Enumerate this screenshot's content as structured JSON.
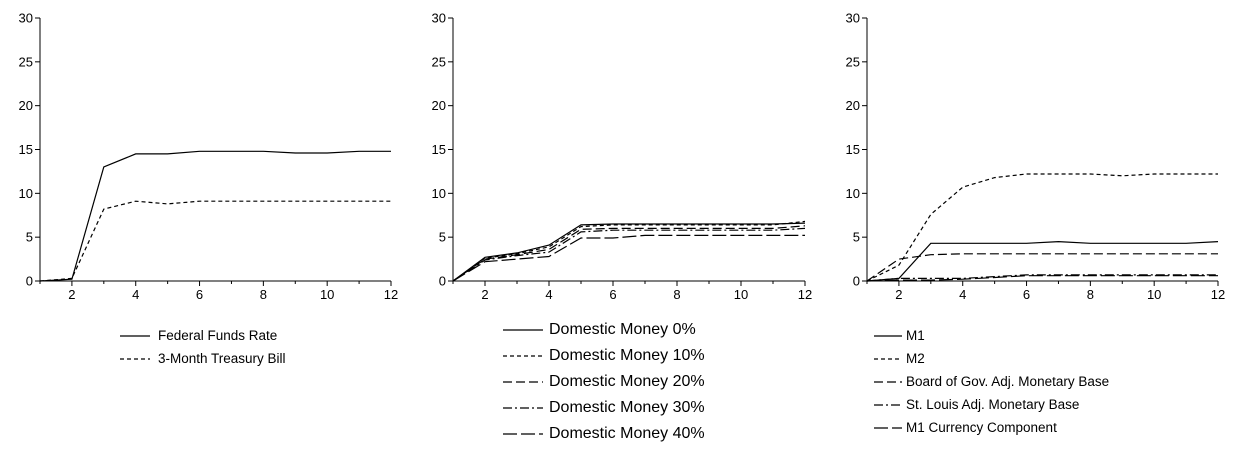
{
  "chart_data": [
    {
      "type": "line",
      "x": [
        1,
        2,
        3,
        4,
        5,
        6,
        7,
        8,
        9,
        10,
        11,
        12
      ],
      "xticks": [
        2,
        4,
        6,
        8,
        10,
        12
      ],
      "xlim": [
        1,
        12
      ],
      "yticks": [
        0,
        5,
        10,
        15,
        20,
        25,
        30
      ],
      "ylim": [
        0,
        30
      ],
      "grid": false,
      "legend_position": "bottom",
      "series": [
        {
          "name": "Federal Funds Rate",
          "dash": "solid",
          "values": [
            0,
            0.2,
            13.0,
            14.5,
            14.5,
            14.8,
            14.8,
            14.8,
            14.6,
            14.6,
            14.8,
            14.8
          ]
        },
        {
          "name": "3-Month Treasury Bill",
          "dash": "short",
          "values": [
            0,
            0.3,
            8.2,
            9.1,
            8.8,
            9.1,
            9.1,
            9.1,
            9.1,
            9.1,
            9.1,
            9.1
          ]
        }
      ]
    },
    {
      "type": "line",
      "x": [
        1,
        2,
        3,
        4,
        5,
        6,
        7,
        8,
        9,
        10,
        11,
        12
      ],
      "xticks": [
        2,
        4,
        6,
        8,
        10,
        12
      ],
      "xlim": [
        1,
        12
      ],
      "yticks": [
        0,
        5,
        10,
        15,
        20,
        25,
        30
      ],
      "ylim": [
        0,
        30
      ],
      "grid": false,
      "legend_position": "bottom",
      "series": [
        {
          "name": "Domestic Money 0%",
          "dash": "solid",
          "values": [
            0,
            2.7,
            3.2,
            4.1,
            6.4,
            6.5,
            6.5,
            6.5,
            6.5,
            6.5,
            6.5,
            6.6
          ]
        },
        {
          "name": "Domestic Money 10%",
          "dash": "short",
          "values": [
            0,
            2.6,
            3.1,
            3.9,
            6.2,
            6.4,
            6.4,
            6.4,
            6.4,
            6.4,
            6.4,
            6.8
          ]
        },
        {
          "name": "Domestic Money 20%",
          "dash": "long",
          "values": [
            0,
            2.5,
            3.0,
            3.6,
            5.9,
            6.0,
            6.0,
            6.0,
            6.0,
            6.0,
            6.0,
            6.3
          ]
        },
        {
          "name": "Domestic Money 30%",
          "dash": "dashdot",
          "values": [
            0,
            2.4,
            2.9,
            3.3,
            5.6,
            5.8,
            5.8,
            5.8,
            5.8,
            5.8,
            5.8,
            6.0
          ]
        },
        {
          "name": "Domestic Money 40%",
          "dash": "longdash",
          "values": [
            0,
            2.2,
            2.5,
            2.8,
            4.9,
            4.9,
            5.2,
            5.2,
            5.2,
            5.2,
            5.2,
            5.2
          ]
        }
      ]
    },
    {
      "type": "line",
      "x": [
        1,
        2,
        3,
        4,
        5,
        6,
        7,
        8,
        9,
        10,
        11,
        12
      ],
      "xticks": [
        2,
        4,
        6,
        8,
        10,
        12
      ],
      "xlim": [
        1,
        12
      ],
      "yticks": [
        0,
        5,
        10,
        15,
        20,
        25,
        30
      ],
      "ylim": [
        0,
        30
      ],
      "grid": false,
      "legend_position": "bottom",
      "series": [
        {
          "name": "M1",
          "dash": "solid",
          "values": [
            0,
            0.3,
            4.3,
            4.3,
            4.3,
            4.3,
            4.5,
            4.3,
            4.3,
            4.3,
            4.3,
            4.5
          ]
        },
        {
          "name": "M2",
          "dash": "short",
          "values": [
            0,
            1.8,
            7.6,
            10.7,
            11.8,
            12.2,
            12.2,
            12.2,
            12.0,
            12.2,
            12.2,
            12.2
          ]
        },
        {
          "name": "Board of Gov. Adj. Monetary Base",
          "dash": "long",
          "values": [
            0,
            2.5,
            3.0,
            3.1,
            3.1,
            3.1,
            3.1,
            3.1,
            3.1,
            3.1,
            3.1,
            3.1
          ]
        },
        {
          "name": "St. Louis Adj. Monetary Base",
          "dash": "dashdot",
          "values": [
            0,
            0.3,
            0.3,
            0.3,
            0.5,
            0.7,
            0.7,
            0.7,
            0.7,
            0.7,
            0.7,
            0.7
          ]
        },
        {
          "name": "M1 Currency Component",
          "dash": "longdash",
          "values": [
            0,
            0.1,
            0.1,
            0.2,
            0.4,
            0.6,
            0.6,
            0.6,
            0.6,
            0.6,
            0.6,
            0.6
          ]
        }
      ]
    }
  ]
}
